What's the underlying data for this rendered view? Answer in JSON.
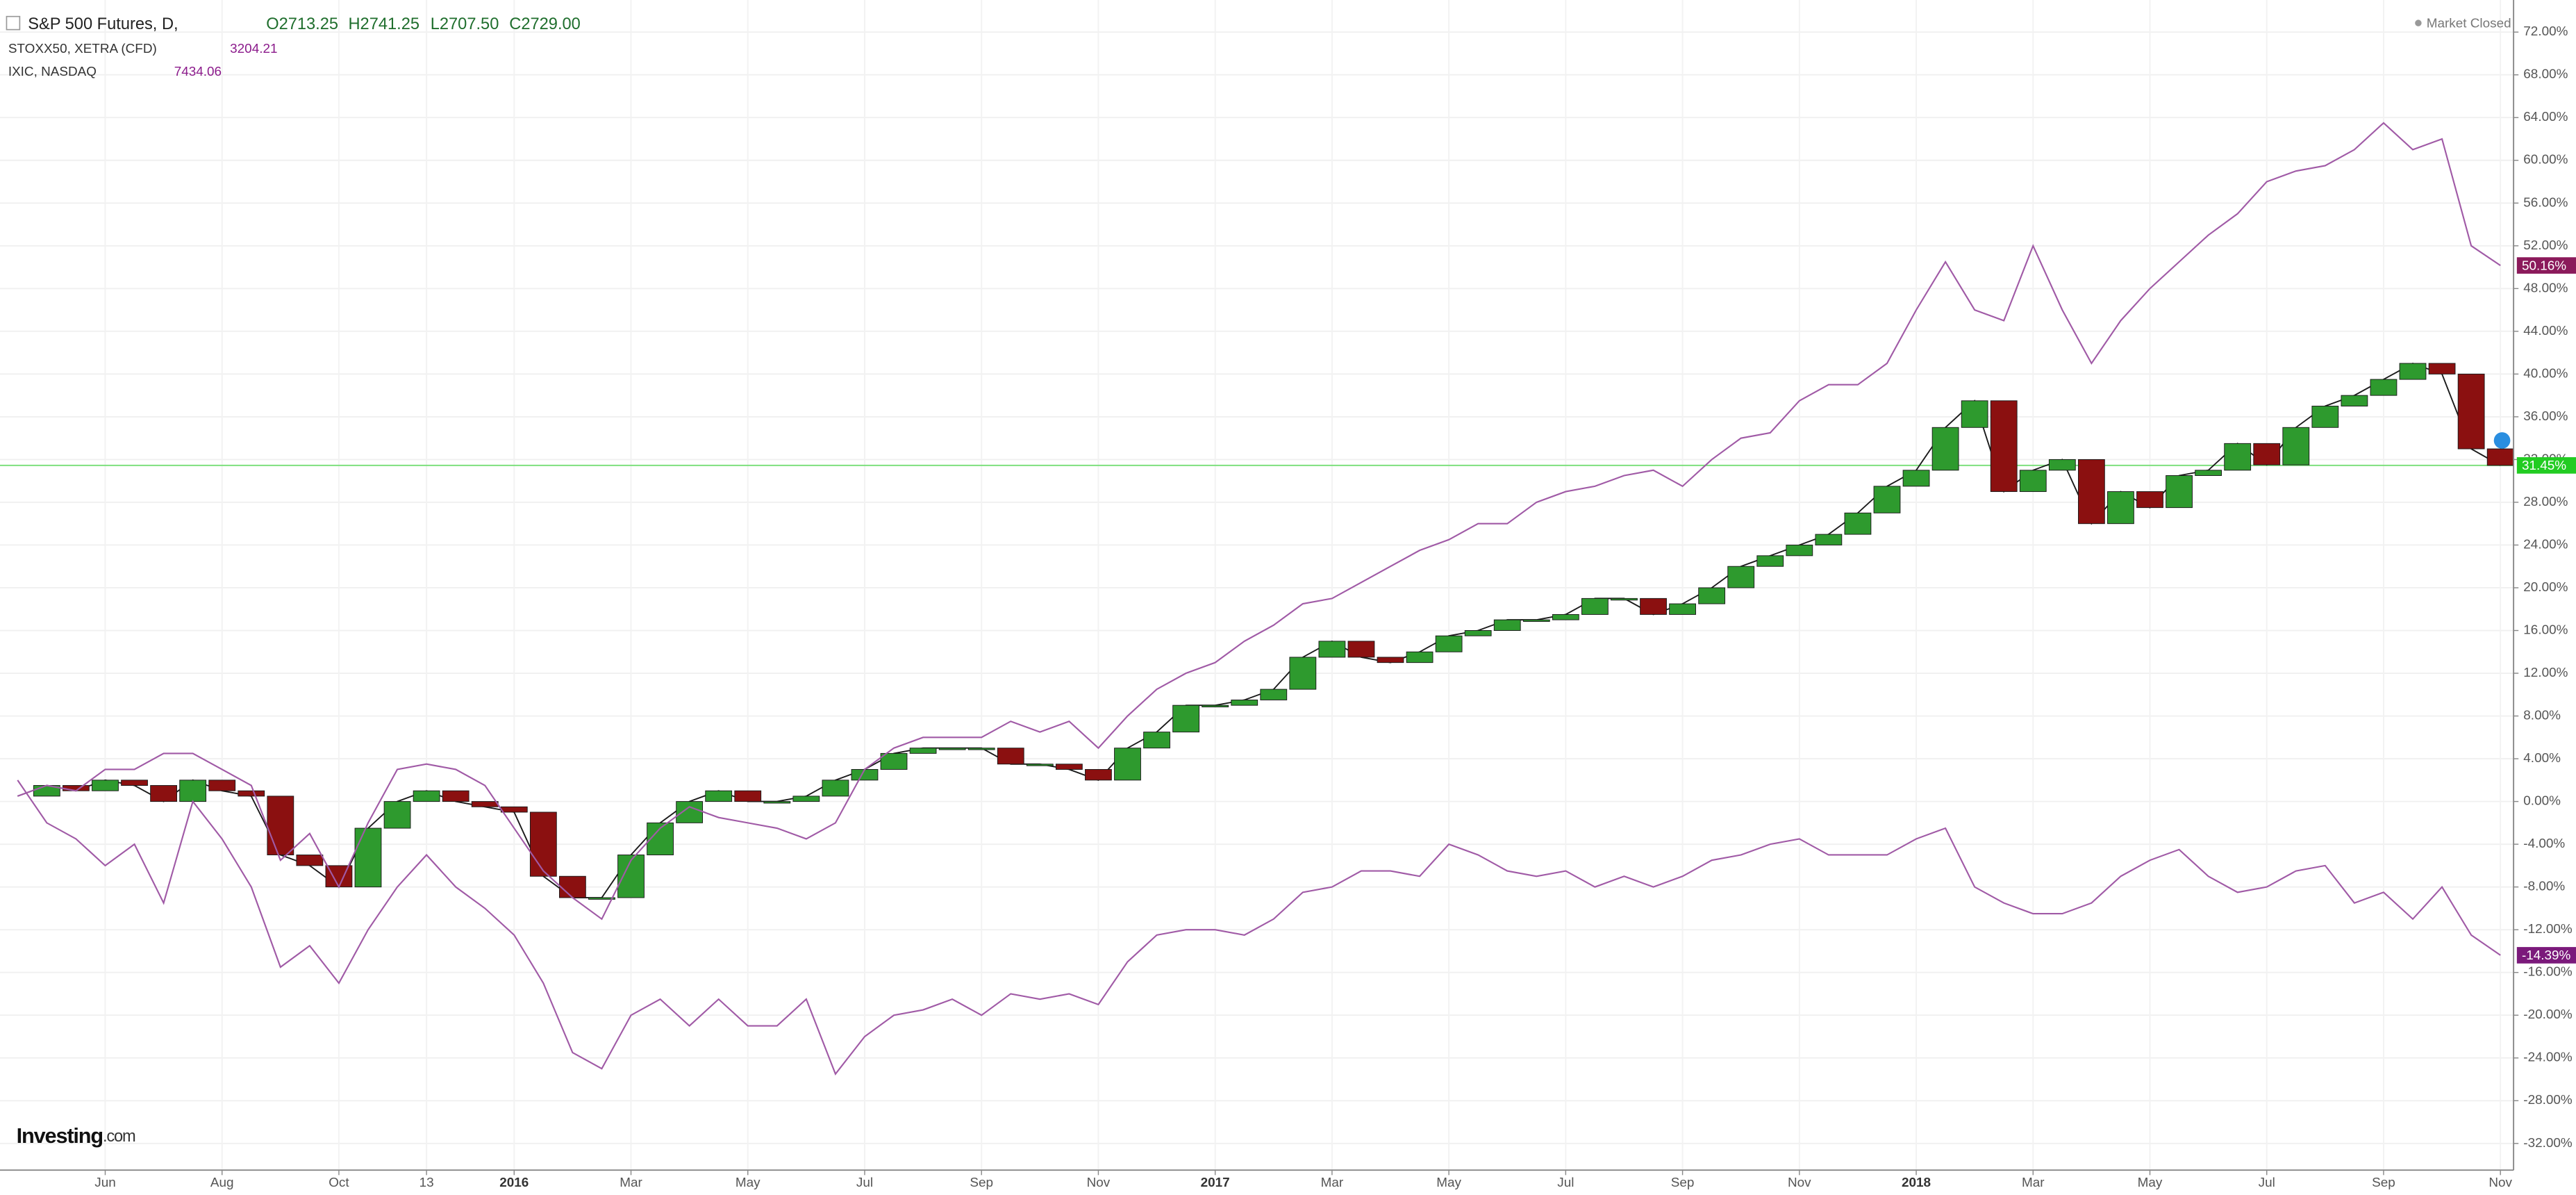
{
  "chart_data": {
    "type": "candlestick",
    "header": {
      "ohlc": [
        "O2713.25",
        "H2741.25",
        "L2707.50",
        "C2729.00"
      ],
      "status": "Market Closed",
      "logo": "Investing",
      "logo_suffix": ".com"
    },
    "categories": [
      null,
      null,
      null,
      "Jun",
      null,
      null,
      null,
      "Aug",
      null,
      null,
      null,
      "Oct",
      null,
      null,
      "13",
      null,
      null,
      "2016",
      null,
      null,
      null,
      "Mar",
      null,
      null,
      null,
      "May",
      null,
      null,
      null,
      "Jul",
      null,
      null,
      null,
      "Sep",
      null,
      null,
      null,
      "Nov",
      null,
      null,
      null,
      "2017",
      null,
      null,
      null,
      "Mar",
      null,
      null,
      null,
      "May",
      null,
      null,
      null,
      "Jul",
      null,
      null,
      null,
      "Sep",
      null,
      null,
      null,
      "Nov",
      null,
      null,
      null,
      "2018",
      null,
      null,
      null,
      "Mar",
      null,
      null,
      null,
      "May",
      null,
      null,
      null,
      "Jul",
      null,
      null,
      null,
      "Sep",
      null,
      null,
      null,
      "Nov"
    ],
    "series": [
      {
        "name": "S&P 500 Futures, D,",
        "type": "candlestick",
        "color": "#1a1a1a",
        "up_color": "#2e9a2e",
        "down_color": "#8b1010",
        "badge_color": "#22cc22",
        "price_line": true,
        "last_label": "31.45%",
        "values": [
          0.5,
          1.5,
          1,
          2,
          1.5,
          0,
          2,
          1,
          0.5,
          -5,
          -6,
          -8,
          -2.5,
          0,
          1,
          0,
          -0.5,
          -1,
          -7,
          -9,
          -9,
          -5,
          -2,
          0,
          1,
          0,
          0,
          0.5,
          2,
          3,
          4.5,
          5,
          5,
          5,
          3.5,
          3.5,
          3,
          2,
          5,
          6.5,
          9,
          9,
          9.5,
          10.5,
          13.5,
          15,
          13.5,
          13,
          14,
          15.5,
          16,
          17,
          17,
          17.5,
          19,
          19,
          17.5,
          18.5,
          20,
          22,
          23,
          24,
          25,
          27,
          29.5,
          31,
          35,
          37.5,
          29,
          31,
          32,
          26,
          29,
          27.5,
          30.5,
          31,
          33.5,
          31.5,
          35,
          37,
          38,
          39.5,
          41,
          40,
          33,
          31.45
        ]
      },
      {
        "name": "STOXX50, XETRA (CFD)",
        "type": "line",
        "price": "3204.21",
        "color": "#a05aa6",
        "badge_color": "#7b1a7b",
        "last_label": "-14.39%",
        "values": [
          2,
          -2,
          -3.5,
          -6,
          -4,
          -9.5,
          0,
          -3.5,
          -8,
          -15.5,
          -13.5,
          -17,
          -12,
          -8,
          -5,
          -8,
          -10,
          -12.5,
          -17,
          -23.5,
          -25,
          -20,
          -18.5,
          -21,
          -18.5,
          -21,
          -21,
          -18.5,
          -25.5,
          -22,
          -20,
          -19.5,
          -18.5,
          -20,
          -18,
          -18.5,
          -18,
          -19,
          -15,
          -12.5,
          -12,
          -12,
          -12.5,
          -11,
          -8.5,
          -8,
          -6.5,
          -6.5,
          -7,
          -4,
          -5,
          -6.5,
          -7,
          -6.5,
          -8,
          -7,
          -8,
          -7,
          -5.5,
          -5,
          -4,
          -3.5,
          -5,
          -5,
          -5,
          -3.5,
          -2.5,
          -8,
          -9.5,
          -10.5,
          -10.5,
          -9.5,
          -7,
          -5.5,
          -4.5,
          -7,
          -8.5,
          -8,
          -6.5,
          -6,
          -9.5,
          -8.5,
          -11,
          -8,
          -12.5,
          -14.39
        ]
      },
      {
        "name": "IXIC, NASDAQ",
        "type": "line",
        "price": "7434.06",
        "color": "#a05aa6",
        "badge_color": "#8b1a5b",
        "last_label": "50.16%",
        "values": [
          0.5,
          1.5,
          1,
          3,
          3,
          4.5,
          4.5,
          3,
          1.5,
          -5.5,
          -3,
          -8,
          -2,
          3,
          3.5,
          3,
          1.5,
          -2.5,
          -6.5,
          -9,
          -11,
          -5.5,
          -2.5,
          -0.5,
          -1.5,
          -2,
          -2.5,
          -3.5,
          -2,
          3,
          5,
          6,
          6,
          6,
          7.5,
          6.5,
          7.5,
          5,
          8,
          10.5,
          12,
          13,
          15,
          16.5,
          18.5,
          19,
          20.5,
          22,
          23.5,
          24.5,
          26,
          26,
          28,
          29,
          29.5,
          30.5,
          31,
          29.5,
          32,
          34,
          34.5,
          37.5,
          39,
          39,
          41,
          46,
          50.5,
          46,
          45,
          52,
          46,
          41,
          45,
          48,
          50.5,
          53,
          55,
          58,
          59,
          59.5,
          61,
          63.5,
          61,
          62,
          52,
          50.16
        ]
      }
    ],
    "ylim": [
      -34.5,
      75
    ],
    "yticks": [
      {
        "value": -32,
        "label": "-32.00%"
      },
      {
        "value": -28,
        "label": "-28.00%"
      },
      {
        "value": -24,
        "label": "-24.00%"
      },
      {
        "value": -20,
        "label": "-20.00%"
      },
      {
        "value": -16,
        "label": "-16.00%"
      },
      {
        "value": -12,
        "label": "-12.00%"
      },
      {
        "value": -8,
        "label": "-8.00%"
      },
      {
        "value": -4,
        "label": "-4.00%"
      },
      {
        "value": 0,
        "label": "0.00%"
      },
      {
        "value": 4,
        "label": "4.00%"
      },
      {
        "value": 8,
        "label": "8.00%"
      },
      {
        "value": 12,
        "label": "12.00%"
      },
      {
        "value": 16,
        "label": "16.00%"
      },
      {
        "value": 20,
        "label": "20.00%"
      },
      {
        "value": 24,
        "label": "24.00%"
      },
      {
        "value": 28,
        "label": "28.00%"
      },
      {
        "value": 32,
        "label": "32.00%"
      },
      {
        "value": 36,
        "label": "36.00%"
      },
      {
        "value": 40,
        "label": "40.00%"
      },
      {
        "value": 44,
        "label": "44.00%"
      },
      {
        "value": 48,
        "label": "48.00%"
      },
      {
        "value": 52,
        "label": "52.00%"
      },
      {
        "value": 56,
        "label": "56.00%"
      },
      {
        "value": 60,
        "label": "60.00%"
      },
      {
        "value": 64,
        "label": "64.00%"
      },
      {
        "value": 68,
        "label": "68.00%"
      },
      {
        "value": 72,
        "label": "72.00%"
      }
    ],
    "grid": true
  }
}
